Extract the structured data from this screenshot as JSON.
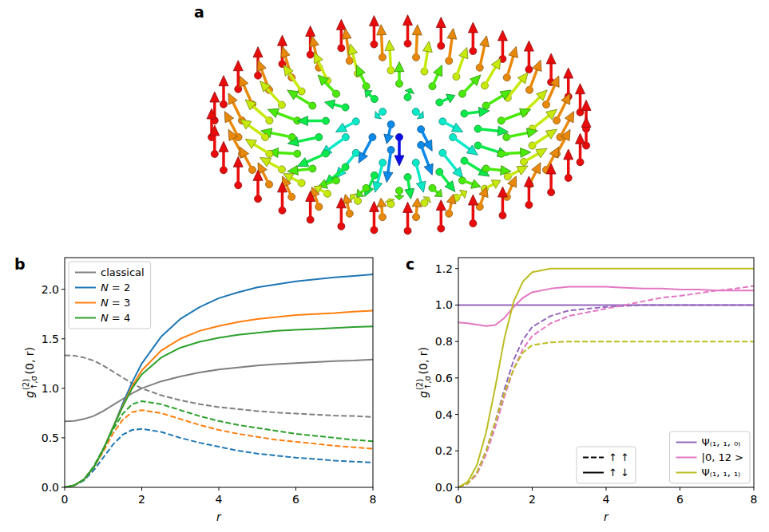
{
  "chart_data": [
    {
      "type": "diagram",
      "panel": "a"
    },
    {
      "type": "line",
      "panel": "b",
      "xlabel": "r",
      "ylabel": {
        "base": "g",
        "sup": "(2)",
        "sub": "↑,σ",
        "args": "(0, r)"
      },
      "xlim": [
        0,
        8
      ],
      "ylim": [
        0,
        2.32
      ],
      "xticks": [
        0,
        2,
        4,
        6,
        8
      ],
      "yticks": [
        {
          "value": 0,
          "label": "0.0"
        },
        0.5,
        {
          "value": 1,
          "label": "1.0"
        },
        1.5,
        {
          "value": 2,
          "label": "2.0"
        }
      ],
      "legend": "upper left",
      "x": [
        0,
        0.25,
        0.5,
        0.75,
        1,
        1.25,
        1.5,
        1.75,
        2,
        2.5,
        3,
        3.5,
        4,
        4.5,
        5,
        5.5,
        6,
        6.5,
        7,
        7.5,
        8
      ],
      "series": [
        {
          "name": "classical",
          "color": "#7f7f7f",
          "line_style": "solid",
          "values": [
            0.667,
            0.67,
            0.69,
            0.72,
            0.77,
            0.83,
            0.89,
            0.95,
            1.0,
            1.07,
            1.12,
            1.16,
            1.19,
            1.21,
            1.23,
            1.245,
            1.255,
            1.265,
            1.275,
            1.28,
            1.29
          ]
        },
        {
          "color": "#7f7f7f",
          "line_style": "dashed",
          "values": [
            1.333,
            1.33,
            1.31,
            1.28,
            1.23,
            1.17,
            1.11,
            1.05,
            1.0,
            0.93,
            0.88,
            0.84,
            0.81,
            0.79,
            0.77,
            0.755,
            0.745,
            0.735,
            0.725,
            0.72,
            0.71
          ]
        },
        {
          "name": "N = 2",
          "color": "#1f77b4",
          "line_style": "solid",
          "values": [
            0,
            0.02,
            0.08,
            0.2,
            0.38,
            0.6,
            0.84,
            1.06,
            1.25,
            1.52,
            1.7,
            1.82,
            1.91,
            1.97,
            2.02,
            2.05,
            2.08,
            2.1,
            2.12,
            2.135,
            2.15
          ]
        },
        {
          "color": "#1f77b4",
          "line_style": "dashed",
          "values": [
            0,
            0.02,
            0.07,
            0.17,
            0.3,
            0.43,
            0.53,
            0.58,
            0.59,
            0.56,
            0.5,
            0.45,
            0.41,
            0.37,
            0.34,
            0.32,
            0.3,
            0.285,
            0.27,
            0.26,
            0.25
          ]
        },
        {
          "name": "N = 3",
          "color": "#ff7f0e",
          "line_style": "solid",
          "values": [
            0,
            0.02,
            0.08,
            0.2,
            0.38,
            0.6,
            0.82,
            1.02,
            1.18,
            1.38,
            1.5,
            1.58,
            1.63,
            1.67,
            1.7,
            1.72,
            1.74,
            1.75,
            1.76,
            1.775,
            1.785
          ]
        },
        {
          "color": "#ff7f0e",
          "line_style": "dashed",
          "values": [
            0,
            0.02,
            0.08,
            0.2,
            0.36,
            0.54,
            0.68,
            0.76,
            0.78,
            0.75,
            0.69,
            0.63,
            0.58,
            0.54,
            0.51,
            0.48,
            0.46,
            0.44,
            0.42,
            0.405,
            0.39
          ]
        },
        {
          "name": "N = 4",
          "color": "#2ca02c",
          "line_style": "solid",
          "values": [
            0,
            0.02,
            0.08,
            0.2,
            0.38,
            0.6,
            0.81,
            1.0,
            1.14,
            1.31,
            1.41,
            1.47,
            1.51,
            1.54,
            1.56,
            1.58,
            1.59,
            1.6,
            1.61,
            1.62,
            1.625
          ]
        },
        {
          "color": "#2ca02c",
          "line_style": "dashed",
          "values": [
            0,
            0.02,
            0.08,
            0.21,
            0.39,
            0.58,
            0.74,
            0.84,
            0.87,
            0.84,
            0.78,
            0.72,
            0.67,
            0.63,
            0.6,
            0.57,
            0.54,
            0.52,
            0.5,
            0.48,
            0.465
          ]
        }
      ]
    },
    {
      "type": "line",
      "panel": "c",
      "xlabel": "r",
      "ylabel": {
        "base": "g",
        "sup": "(2)",
        "sub": "↑,σ",
        "args": "(0, r)"
      },
      "xlim": [
        0,
        8
      ],
      "ylim": [
        0,
        1.26
      ],
      "xticks": [
        0,
        2,
        4,
        6,
        8
      ],
      "yticks": [
        {
          "value": 0,
          "label": "0.0"
        },
        0.2,
        0.4,
        0.6,
        0.8,
        {
          "value": 1,
          "label": "1.0"
        },
        1.2
      ],
      "legend": "lower right",
      "line_style_legend": {
        "legend": "lower center",
        "entries": [
          {
            "label": "↑ ↑",
            "line_style": "dashed"
          },
          {
            "label": "↑ ↓",
            "line_style": "solid"
          }
        ]
      },
      "x": [
        0,
        0.25,
        0.5,
        0.75,
        1,
        1.25,
        1.5,
        1.75,
        2,
        2.5,
        3,
        3.5,
        4,
        4.5,
        5,
        5.5,
        6,
        6.5,
        7,
        7.5,
        8
      ],
      "series": [
        {
          "name": "Ψ₍₁, ₁, ₀₎",
          "color": "#9467bd",
          "line_style": "solid",
          "values": [
            1,
            1,
            1,
            1,
            1,
            1,
            1,
            1,
            1,
            1,
            1,
            1,
            1,
            1,
            1,
            1,
            1,
            1,
            1,
            1,
            1
          ]
        },
        {
          "color": "#9467bd",
          "line_style": "dashed",
          "values": [
            0,
            0.02,
            0.08,
            0.2,
            0.36,
            0.54,
            0.7,
            0.81,
            0.88,
            0.94,
            0.97,
            0.98,
            0.99,
            0.995,
            1,
            1,
            1,
            1,
            1,
            1,
            1
          ]
        },
        {
          "name": "|0, 12 >",
          "color": "#e377c2",
          "line_style": "solid",
          "values": [
            0.905,
            0.9,
            0.893,
            0.885,
            0.89,
            0.93,
            0.99,
            1.04,
            1.07,
            1.09,
            1.1,
            1.1,
            1.1,
            1.095,
            1.09,
            1.09,
            1.085,
            1.085,
            1.08,
            1.08,
            1.08
          ]
        },
        {
          "color": "#e377c2",
          "line_style": "dashed",
          "values": [
            0,
            0.02,
            0.07,
            0.18,
            0.33,
            0.5,
            0.65,
            0.76,
            0.83,
            0.9,
            0.94,
            0.96,
            0.98,
            1.0,
            1.02,
            1.04,
            1.05,
            1.065,
            1.08,
            1.09,
            1.105
          ]
        },
        {
          "name": "Ψ₍₁, ₁, ₁₎",
          "color": "#bcbd22",
          "line_style": "solid",
          "values": [
            0,
            0.03,
            0.12,
            0.3,
            0.55,
            0.82,
            1.02,
            1.13,
            1.18,
            1.2,
            1.2,
            1.2,
            1.2,
            1.2,
            1.2,
            1.2,
            1.2,
            1.2,
            1.2,
            1.2,
            1.2
          ]
        },
        {
          "color": "#bcbd22",
          "line_style": "dashed",
          "values": [
            0,
            0.02,
            0.08,
            0.2,
            0.36,
            0.52,
            0.65,
            0.74,
            0.78,
            0.795,
            0.8,
            0.8,
            0.8,
            0.8,
            0.8,
            0.8,
            0.8,
            0.8,
            0.8,
            0.8,
            0.8
          ]
        }
      ]
    }
  ]
}
